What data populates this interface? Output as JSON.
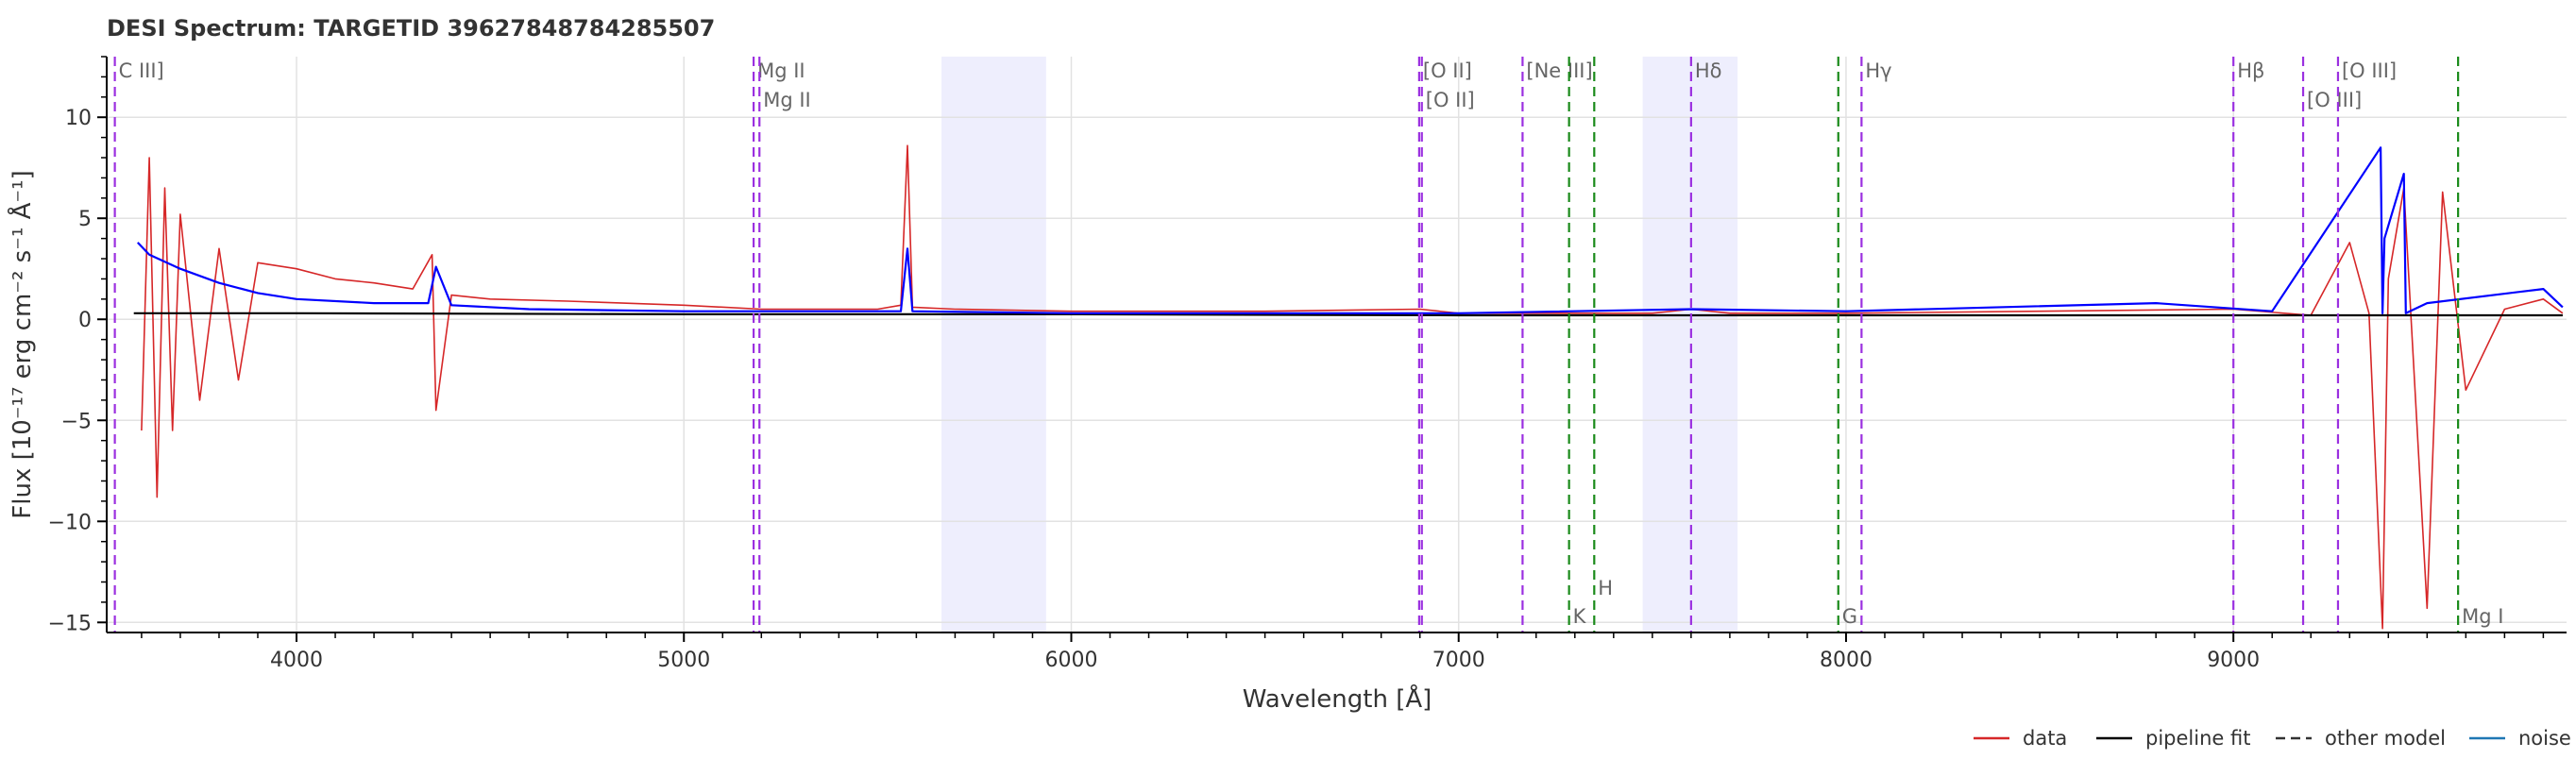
{
  "chart_data": {
    "type": "line",
    "title": "DESI Spectrum: TARGETID 39627848784285507",
    "xlabel": "Wavelength [Å]",
    "ylabel": "Flux [10⁻¹⁷ erg cm⁻² s⁻¹ Å⁻¹]",
    "xlim": [
      3510,
      9860
    ],
    "ylim": [
      -15.5,
      13
    ],
    "xticks": [
      4000,
      5000,
      6000,
      7000,
      8000,
      9000
    ],
    "yticks": [
      -15,
      -10,
      -5,
      0,
      5,
      10
    ],
    "grid": true,
    "colors": {
      "data": "#d62728",
      "pipeline_fit": "#000000",
      "other_model": "#0000ff",
      "noise": "#1f77b4",
      "emission_line": "#9b30e0",
      "absorption_line": "#1a8a1a",
      "line_label": "#666666",
      "masked_band": "#eeeefd"
    },
    "masked_regions": [
      [
        5665,
        5935
      ],
      [
        7475,
        7720
      ]
    ],
    "series": [
      {
        "name": "data",
        "x": [
          3600,
          3620,
          3640,
          3660,
          3680,
          3700,
          3750,
          3800,
          3850,
          3900,
          4000,
          4100,
          4200,
          4300,
          4350,
          4360,
          4400,
          4500,
          4700,
          5000,
          5200,
          5500,
          5560,
          5577,
          5590,
          5700,
          6000,
          6500,
          6900,
          7000,
          7500,
          7600,
          7700,
          8000,
          8500,
          9000,
          9200,
          9300,
          9350,
          9385,
          9400,
          9440,
          9500,
          9540,
          9600,
          9700,
          9800,
          9850
        ],
        "y": [
          -5.5,
          8.0,
          -8.8,
          6.5,
          -5.5,
          5.2,
          -4.0,
          3.5,
          -3.0,
          2.8,
          2.5,
          2.0,
          1.8,
          1.5,
          3.2,
          -4.5,
          1.2,
          1.0,
          0.9,
          0.7,
          0.5,
          0.5,
          0.7,
          8.6,
          0.6,
          0.5,
          0.4,
          0.4,
          0.5,
          0.3,
          0.3,
          0.5,
          0.3,
          0.3,
          0.4,
          0.5,
          0.2,
          3.8,
          0.3,
          -15.3,
          2.0,
          6.5,
          -14.3,
          6.3,
          -3.5,
          0.5,
          1.0,
          0.3
        ]
      },
      {
        "name": "pipeline fit",
        "x": [
          3580,
          4000,
          5000,
          6000,
          7000,
          8000,
          9000,
          9850
        ],
        "y": [
          0.3,
          0.3,
          0.25,
          0.25,
          0.2,
          0.2,
          0.2,
          0.2
        ]
      },
      {
        "name": "other model",
        "x": [
          3590,
          3620,
          3700,
          3800,
          3900,
          4000,
          4200,
          4340,
          4360,
          4400,
          4600,
          5000,
          5560,
          5577,
          5590,
          6000,
          7000,
          7600,
          8000,
          8800,
          9100,
          9380,
          9385,
          9390,
          9440,
          9445,
          9500,
          9800,
          9850
        ],
        "y": [
          3.8,
          3.2,
          2.5,
          1.8,
          1.3,
          1.0,
          0.8,
          0.8,
          2.6,
          0.7,
          0.5,
          0.4,
          0.4,
          3.5,
          0.4,
          0.3,
          0.3,
          0.5,
          0.4,
          0.8,
          0.4,
          8.5,
          0.3,
          4.0,
          7.2,
          0.3,
          0.8,
          1.5,
          0.6
        ]
      },
      {
        "name": "noise",
        "x": [],
        "y": []
      }
    ],
    "spectral_lines": [
      {
        "label": "C III]",
        "wavelength": 3531,
        "kind": "emission"
      },
      {
        "label": "Mg II",
        "wavelength": 5180,
        "kind": "emission"
      },
      {
        "label": "Mg II",
        "wavelength": 5195,
        "kind": "emission"
      },
      {
        "label": "[O II]",
        "wavelength": 6898,
        "kind": "emission"
      },
      {
        "label": "[O II]",
        "wavelength": 6905,
        "kind": "emission"
      },
      {
        "label": "[Ne III]",
        "wavelength": 7165,
        "kind": "emission"
      },
      {
        "label": "K",
        "wavelength": 7285,
        "kind": "absorption"
      },
      {
        "label": "H",
        "wavelength": 7350,
        "kind": "absorption"
      },
      {
        "label": "Hδ",
        "wavelength": 7600,
        "kind": "emission"
      },
      {
        "label": "G",
        "wavelength": 7980,
        "kind": "absorption"
      },
      {
        "label": "Hγ",
        "wavelength": 8040,
        "kind": "emission"
      },
      {
        "label": "Hβ",
        "wavelength": 9000,
        "kind": "emission"
      },
      {
        "label": "[O III]",
        "wavelength": 9180,
        "kind": "emission"
      },
      {
        "label": "[O III]",
        "wavelength": 9270,
        "kind": "emission"
      },
      {
        "label": "Mg I",
        "wavelength": 9580,
        "kind": "absorption"
      }
    ],
    "legend": {
      "position": "bottom-right",
      "items": [
        {
          "label": "data",
          "style": "solid"
        },
        {
          "label": "pipeline fit",
          "style": "solid"
        },
        {
          "label": "other model",
          "style": "dashed"
        },
        {
          "label": "noise",
          "style": "solid"
        }
      ]
    }
  }
}
